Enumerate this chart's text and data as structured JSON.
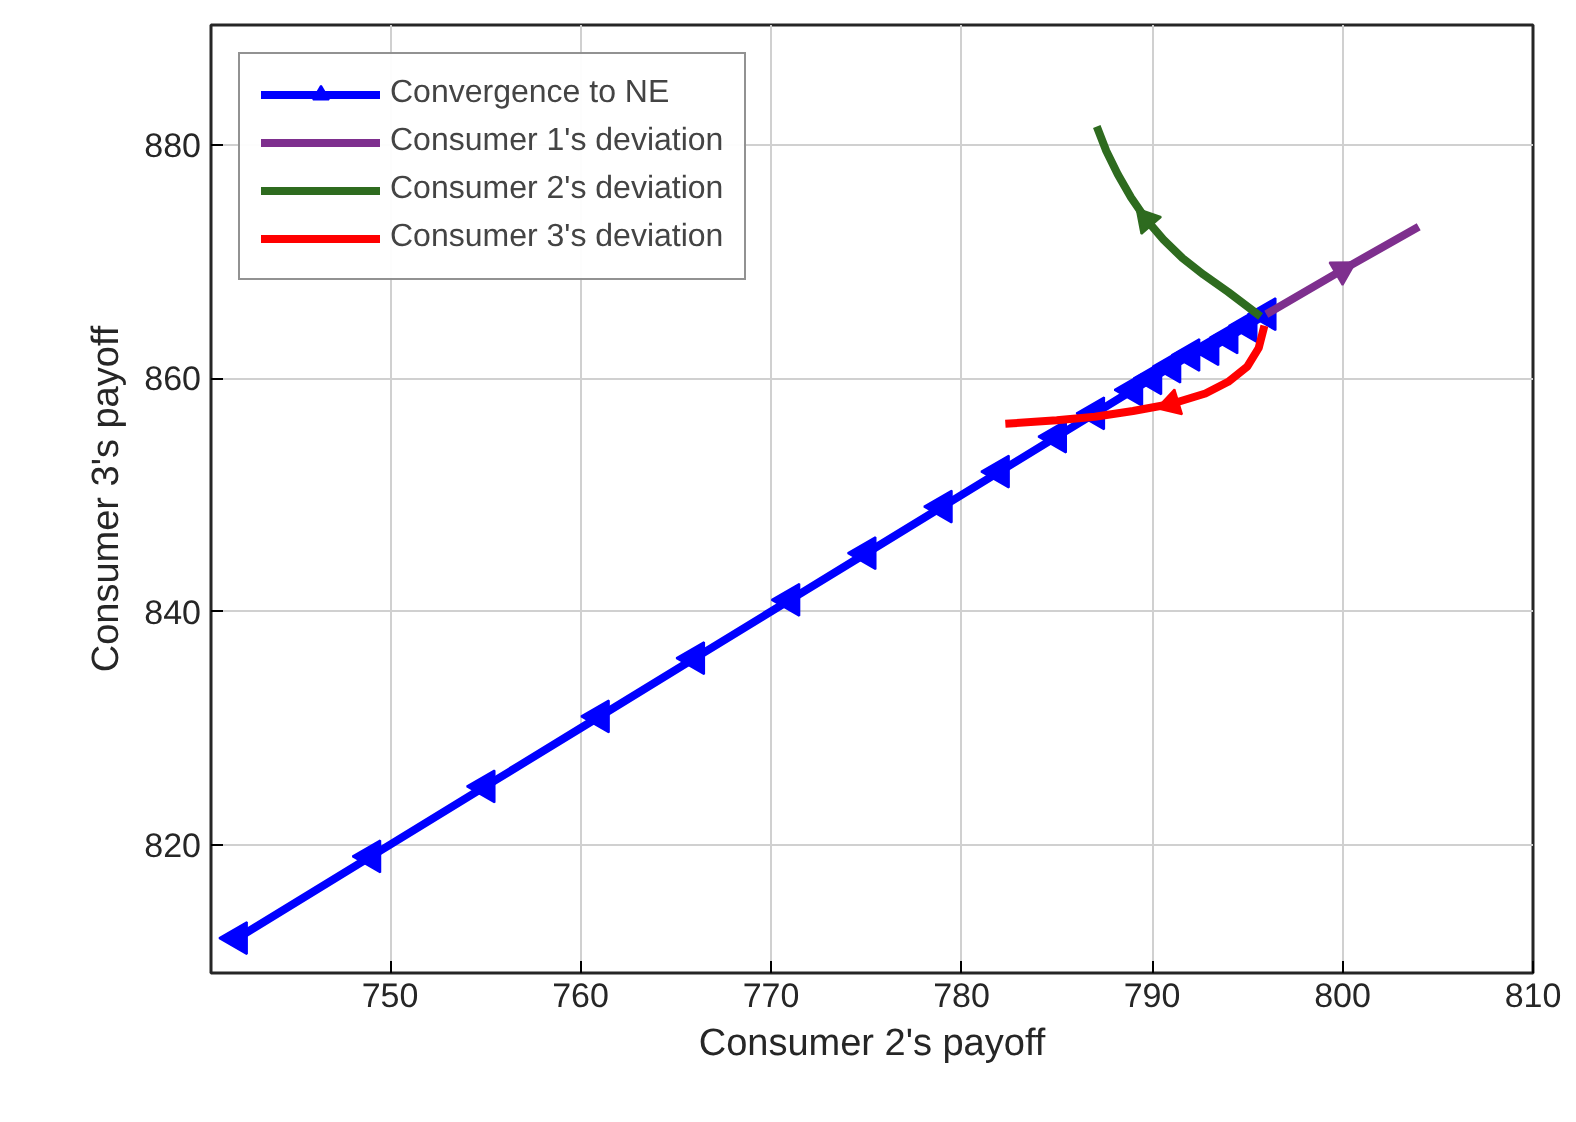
{
  "chart_data": {
    "type": "line",
    "xlabel": "Consumer 2's payoff",
    "ylabel": "Consumer 3's payoff",
    "xlim": [
      740.6,
      810
    ],
    "ylim": [
      809,
      890.3
    ],
    "xticks": [
      750,
      760,
      770,
      780,
      790,
      800,
      810
    ],
    "yticks": [
      820,
      840,
      860,
      880
    ],
    "grid": true,
    "legend": "top left",
    "line_style": "solid",
    "series": [
      {
        "name": "Convergence to NE",
        "color": "#0000ff",
        "marker": "triangle",
        "x": [
          742,
          749,
          755,
          761,
          766,
          771,
          775,
          779,
          782,
          785,
          787,
          789,
          790,
          791,
          792,
          793,
          794,
          795,
          796
        ],
        "values": [
          812,
          819,
          825,
          831,
          836,
          841,
          845,
          849,
          852,
          855,
          857,
          859,
          860,
          861,
          862,
          862.5,
          863.5,
          864.5,
          865.5
        ]
      },
      {
        "name": "Consumer 1's deviation",
        "color": "#7e2f8e",
        "marker": "none",
        "x": [
          796,
          800,
          804
        ],
        "values": [
          865.5,
          869.3,
          873
        ]
      },
      {
        "name": "Consumer 2's deviation",
        "color": "#2e6b1f",
        "marker": "none",
        "x": [
          795.7,
          794,
          792.7,
          791.6,
          790.6,
          789.7,
          788.9,
          788.2,
          787.6,
          787.1
        ],
        "values": [
          865.3,
          867.4,
          868.9,
          870.3,
          871.9,
          873.6,
          875.5,
          877.5,
          879.5,
          881.6
        ]
      },
      {
        "name": "Consumer 3's deviation",
        "color": "#ff0000",
        "marker": "none",
        "x": [
          795.9,
          795.6,
          795,
          794,
          792.8,
          791,
          789,
          787,
          785,
          782.3
        ],
        "values": [
          864.5,
          862.6,
          861,
          859.7,
          858.7,
          857.8,
          857.2,
          856.7,
          856.4,
          856.1
        ]
      }
    ]
  }
}
